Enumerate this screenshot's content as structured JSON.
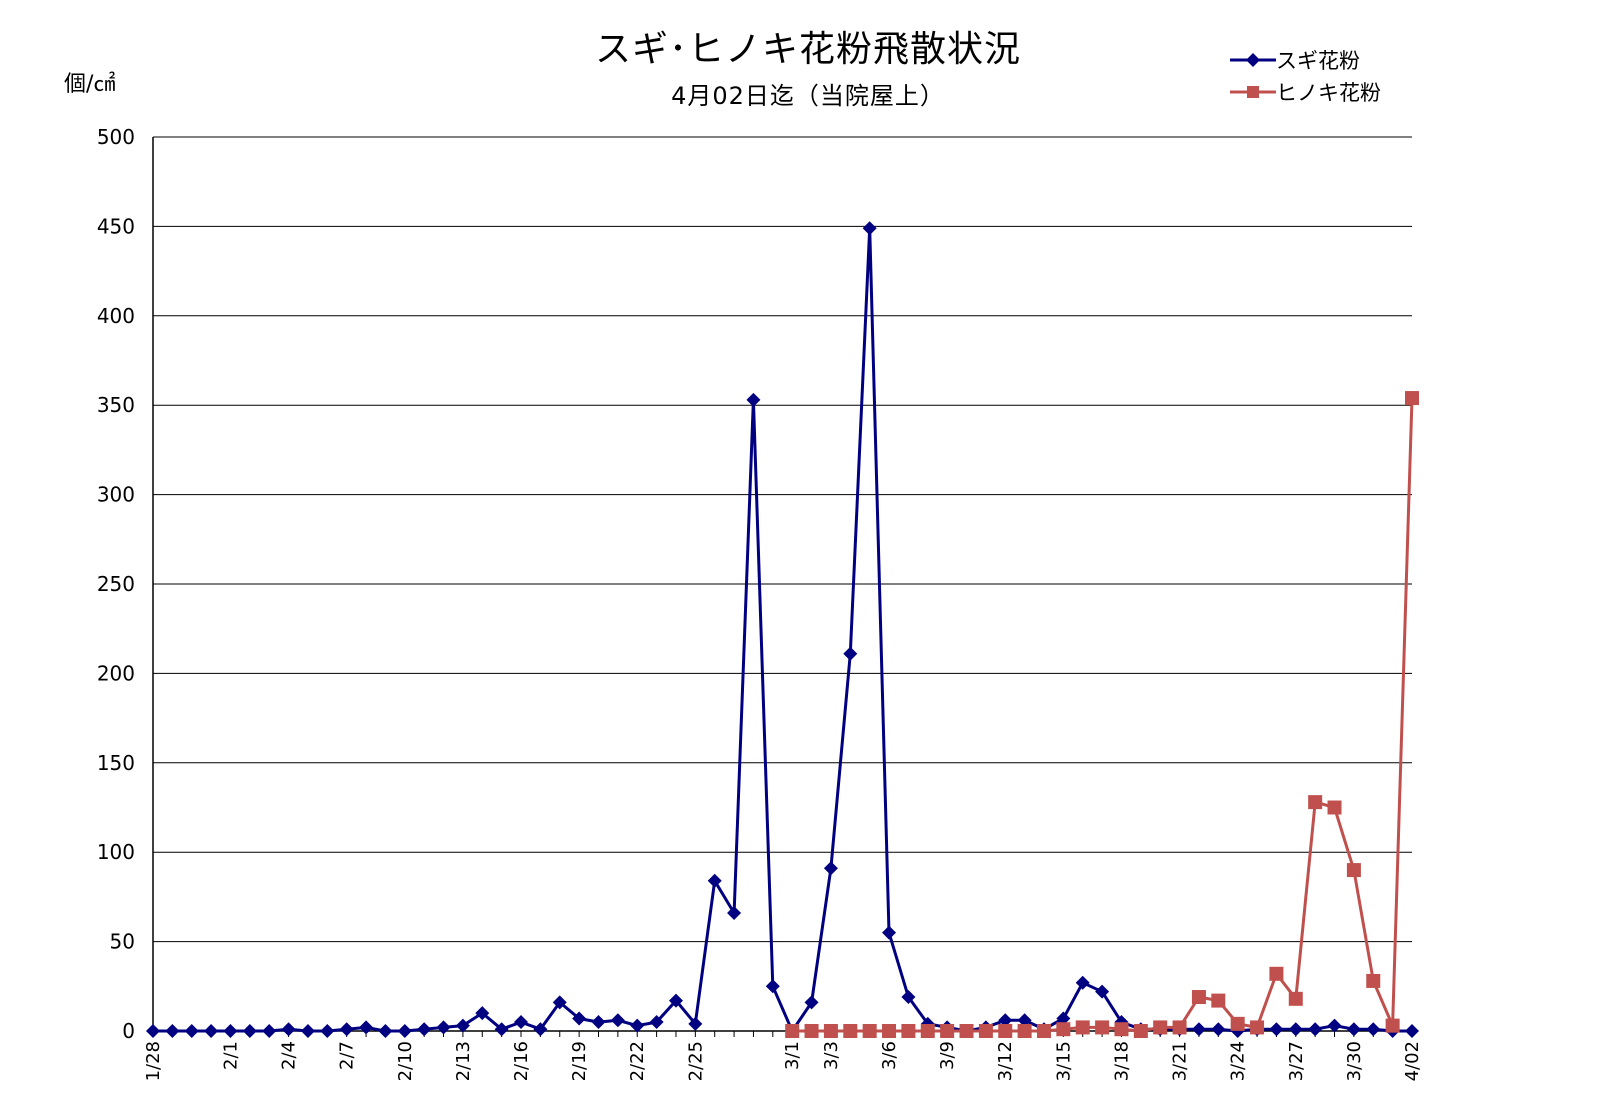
{
  "chart_data": {
    "type": "line",
    "title": "スギ･ヒノキ花粉飛散状況",
    "subtitle": "4月02日迄（当院屋上）",
    "ylabel": "個/㎠",
    "ylim": [
      0,
      500
    ],
    "yticks": [
      0,
      50,
      100,
      150,
      200,
      250,
      300,
      350,
      400,
      450,
      500
    ],
    "grid": true,
    "legend_position": "top-right",
    "x": [
      "1/28",
      "1/29",
      "1/30",
      "1/31",
      "2/1",
      "2/2",
      "2/3",
      "2/4",
      "2/5",
      "2/6",
      "2/7",
      "2/8",
      "2/9",
      "2/10",
      "2/11",
      "2/12",
      "2/13",
      "2/14",
      "2/15",
      "2/16",
      "2/17",
      "2/18",
      "2/19",
      "2/20",
      "2/21",
      "2/22",
      "2/23",
      "2/24",
      "2/25",
      "2/26",
      "2/27",
      "2/28",
      "2/29",
      "3/1",
      "3/2",
      "3/3",
      "3/4",
      "3/5",
      "3/6",
      "3/7",
      "3/8",
      "3/9",
      "3/10",
      "3/11",
      "3/12",
      "3/13",
      "3/14",
      "3/15",
      "3/16",
      "3/17",
      "3/18",
      "3/19",
      "3/20",
      "3/21",
      "3/22",
      "3/23",
      "3/24",
      "3/25",
      "3/26",
      "3/27",
      "3/28",
      "3/29",
      "3/30",
      "3/31",
      "4/01",
      "4/02"
    ],
    "xtick_labels": [
      "1/28",
      "2/1",
      "2/4",
      "2/7",
      "2/10",
      "2/13",
      "2/16",
      "2/19",
      "2/22",
      "2/25",
      "3/1",
      "3/3",
      "3/6",
      "3/9",
      "3/12",
      "3/15",
      "3/18",
      "3/21",
      "3/24",
      "3/27",
      "3/30",
      "4/02"
    ],
    "series": [
      {
        "name": "スギ花粉",
        "color": "#000080",
        "marker": "diamond",
        "values": [
          0,
          0,
          0,
          0,
          0,
          0,
          0,
          1,
          0,
          0,
          1,
          2,
          0,
          0,
          1,
          2,
          3,
          10,
          1,
          5,
          1,
          16,
          7,
          5,
          6,
          3,
          5,
          17,
          4,
          84,
          66,
          353,
          25,
          0,
          16,
          91,
          211,
          449,
          55,
          19,
          4,
          2,
          0,
          2,
          6,
          6,
          1,
          7,
          27,
          22,
          5,
          1,
          1,
          1,
          1,
          1,
          0,
          1,
          1,
          1,
          1,
          3,
          1,
          1,
          0,
          0
        ]
      },
      {
        "name": "ヒノキ花粉",
        "color": "#C0504D",
        "marker": "square",
        "values": [
          null,
          null,
          null,
          null,
          null,
          null,
          null,
          null,
          null,
          null,
          null,
          null,
          null,
          null,
          null,
          null,
          null,
          null,
          null,
          null,
          null,
          null,
          null,
          null,
          null,
          null,
          null,
          null,
          null,
          null,
          null,
          null,
          null,
          0,
          0,
          0,
          0,
          0,
          0,
          0,
          0,
          0,
          0,
          0,
          0,
          0,
          0,
          1,
          2,
          2,
          1,
          0,
          2,
          2,
          19,
          17,
          4,
          2,
          32,
          18,
          128,
          125,
          90,
          28,
          3,
          354
        ]
      }
    ]
  }
}
